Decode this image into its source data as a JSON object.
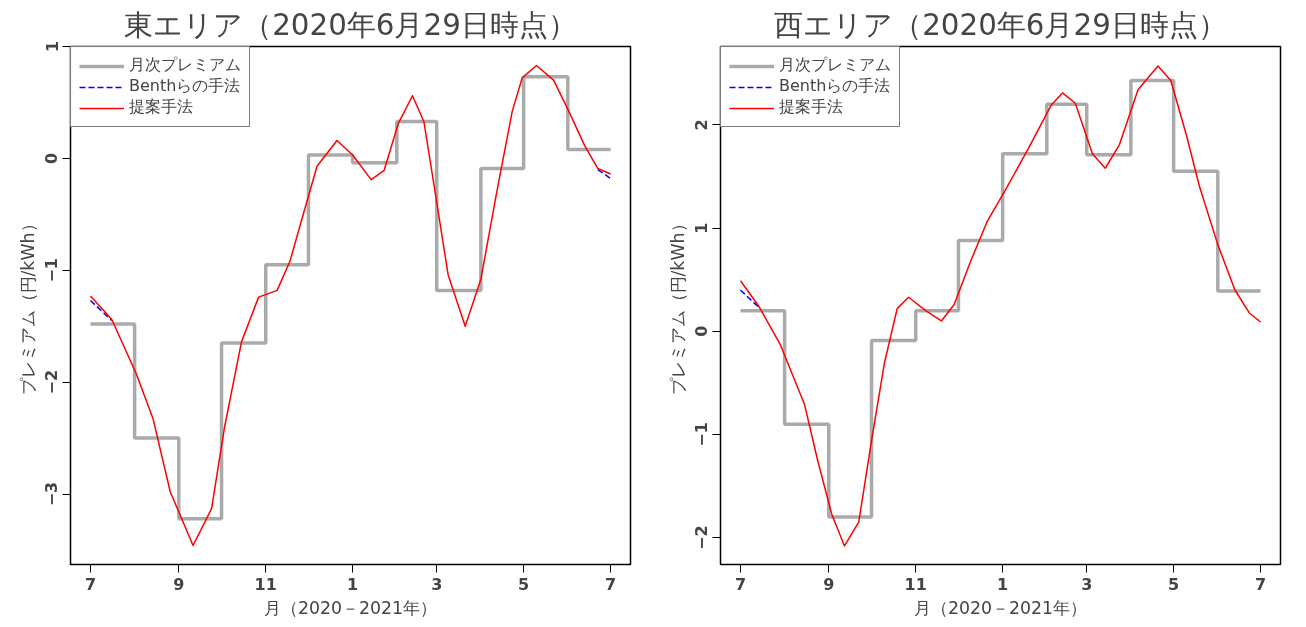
{
  "chart_data": [
    {
      "type": "line",
      "title": "東エリア（2020年6月29日時点）",
      "xlabel": "月（2020－2021年）",
      "ylabel": "プレミアム（円/kWh）",
      "xlim": [
        "2020-06-17",
        "2021-07-15"
      ],
      "ylim": [
        -3.63,
        1.0
      ],
      "xticks": [
        {
          "value": "2020-07-01",
          "label": "7"
        },
        {
          "value": "2020-09-01",
          "label": "9"
        },
        {
          "value": "2020-11-01",
          "label": "11"
        },
        {
          "value": "2021-01-01",
          "label": "1"
        },
        {
          "value": "2021-03-01",
          "label": "3"
        },
        {
          "value": "2021-05-01",
          "label": "5"
        },
        {
          "value": "2021-07-01",
          "label": "7"
        }
      ],
      "yticks": [
        -3,
        -2,
        -1,
        0,
        1
      ],
      "grid": false,
      "legend": "top left",
      "series": [
        {
          "name": "月次プレミアム",
          "type": "step",
          "color": "#aaaaaa",
          "x": [
            "2020-07-01",
            "2020-08-01",
            "2020-09-01",
            "2020-10-01",
            "2020-11-01",
            "2020-12-01",
            "2021-01-01",
            "2021-02-01",
            "2021-03-01",
            "2021-04-01",
            "2021-05-01",
            "2021-06-01",
            "2021-07-01"
          ],
          "values": [
            -1.48,
            -2.5,
            -3.22,
            -1.65,
            -0.95,
            0.03,
            -0.04,
            0.33,
            -1.18,
            -0.09,
            0.73,
            0.08,
            0.08
          ]
        },
        {
          "name": "Benthらの手法",
          "line_style": "dashed",
          "color": "#0000ff",
          "x": [
            "2020-07-01",
            "2020-07-16",
            "2020-08-02",
            "2020-08-14",
            "2020-08-26",
            "2020-09-11",
            "2020-09-24",
            "2020-10-03",
            "2020-10-15",
            "2020-10-27",
            "2020-11-09",
            "2020-11-18",
            "2020-11-28",
            "2020-12-07",
            "2020-12-21",
            "2021-01-01",
            "2021-01-14",
            "2021-01-23",
            "2021-02-02",
            "2021-02-12",
            "2021-02-20",
            "2021-02-27",
            "2021-03-09",
            "2021-03-21",
            "2021-04-01",
            "2021-04-12",
            "2021-04-23",
            "2021-04-30",
            "2021-05-10",
            "2021-05-22",
            "2021-06-01",
            "2021-06-13",
            "2021-06-22",
            "2021-07-01"
          ],
          "values": [
            -1.27,
            -1.45,
            null,
            null,
            null,
            null,
            null,
            null,
            null,
            null,
            null,
            null,
            null,
            null,
            null,
            null,
            null,
            null,
            null,
            null,
            null,
            null,
            null,
            null,
            null,
            null,
            null,
            null,
            null,
            null,
            null,
            null,
            -0.1,
            -0.18
          ]
        },
        {
          "name": "提案手法",
          "line_style": "solid",
          "color": "#ff0000",
          "x": [
            "2020-07-01",
            "2020-07-16",
            "2020-08-02",
            "2020-08-14",
            "2020-08-26",
            "2020-09-11",
            "2020-09-24",
            "2020-10-03",
            "2020-10-15",
            "2020-10-27",
            "2020-11-09",
            "2020-11-18",
            "2020-11-28",
            "2020-12-07",
            "2020-12-21",
            "2021-01-01",
            "2021-01-14",
            "2021-01-23",
            "2021-02-02",
            "2021-02-12",
            "2021-02-20",
            "2021-02-27",
            "2021-03-09",
            "2021-03-21",
            "2021-04-01",
            "2021-04-12",
            "2021-04-23",
            "2021-04-30",
            "2021-05-10",
            "2021-05-22",
            "2021-06-01",
            "2021-06-13",
            "2021-06-22",
            "2021-07-01"
          ],
          "values": [
            -1.23,
            -1.44,
            -1.92,
            -2.33,
            -2.98,
            -3.46,
            -3.13,
            -2.41,
            -1.64,
            -1.24,
            -1.18,
            -0.92,
            -0.47,
            -0.07,
            0.16,
            0.03,
            -0.19,
            -0.11,
            0.31,
            0.56,
            0.33,
            -0.23,
            -1.04,
            -1.5,
            -1.08,
            -0.31,
            0.42,
            0.72,
            0.83,
            0.7,
            0.44,
            0.11,
            -0.09,
            -0.14
          ]
        }
      ]
    },
    {
      "type": "line",
      "title": "西エリア（2020年6月29日時点）",
      "xlabel": "月（2020－2021年）",
      "ylabel": "プレミアム（円/kWh）",
      "xlim": [
        "2020-06-17",
        "2021-07-15"
      ],
      "ylim": [
        -2.26,
        2.76
      ],
      "xticks": [
        {
          "value": "2020-07-01",
          "label": "7"
        },
        {
          "value": "2020-09-01",
          "label": "9"
        },
        {
          "value": "2020-11-01",
          "label": "11"
        },
        {
          "value": "2021-01-01",
          "label": "1"
        },
        {
          "value": "2021-03-01",
          "label": "3"
        },
        {
          "value": "2021-05-01",
          "label": "5"
        },
        {
          "value": "2021-07-01",
          "label": "7"
        }
      ],
      "yticks": [
        -2,
        -1,
        0,
        1,
        2
      ],
      "grid": false,
      "legend": "top left",
      "series": [
        {
          "name": "月次プレミアム",
          "type": "step",
          "color": "#aaaaaa",
          "x": [
            "2020-07-01",
            "2020-08-01",
            "2020-09-01",
            "2020-10-01",
            "2020-11-01",
            "2020-12-01",
            "2021-01-01",
            "2021-02-01",
            "2021-03-01",
            "2021-04-01",
            "2021-05-01",
            "2021-06-01",
            "2021-07-01"
          ],
          "values": [
            0.2,
            -0.9,
            -1.8,
            -0.09,
            0.2,
            0.88,
            1.72,
            2.2,
            1.71,
            2.43,
            1.55,
            0.39,
            0.39
          ]
        },
        {
          "name": "Benthらの手法",
          "line_style": "dashed",
          "color": "#0000ff",
          "x": [
            "2020-07-01",
            "2020-07-14"
          ],
          "values": [
            0.4,
            0.23
          ]
        },
        {
          "name": "提案手法",
          "line_style": "solid",
          "color": "#ff0000",
          "x": [
            "2020-07-01",
            "2020-07-14",
            "2020-07-29",
            "2020-08-15",
            "2020-08-24",
            "2020-09-03",
            "2020-09-12",
            "2020-09-22",
            "2020-10-01",
            "2020-10-10",
            "2020-10-19",
            "2020-10-27",
            "2020-11-08",
            "2020-11-19",
            "2020-11-28",
            "2020-12-09",
            "2020-12-21",
            "2021-01-03",
            "2021-01-19",
            "2021-02-04",
            "2021-02-12",
            "2021-02-21",
            "2021-03-05",
            "2021-03-14",
            "2021-03-24",
            "2021-04-06",
            "2021-04-20",
            "2021-04-29",
            "2021-05-10",
            "2021-05-19",
            "2021-06-01",
            "2021-06-13",
            "2021-06-23",
            "2021-07-01"
          ],
          "values": [
            0.49,
            0.24,
            -0.13,
            -0.71,
            -1.24,
            -1.77,
            -2.08,
            -1.85,
            -1.06,
            -0.31,
            0.22,
            0.33,
            0.2,
            0.1,
            0.26,
            0.66,
            1.06,
            1.37,
            1.77,
            2.19,
            2.31,
            2.21,
            1.72,
            1.58,
            1.81,
            2.34,
            2.57,
            2.43,
            1.9,
            1.41,
            0.84,
            0.4,
            0.18,
            0.09
          ]
        }
      ]
    }
  ]
}
